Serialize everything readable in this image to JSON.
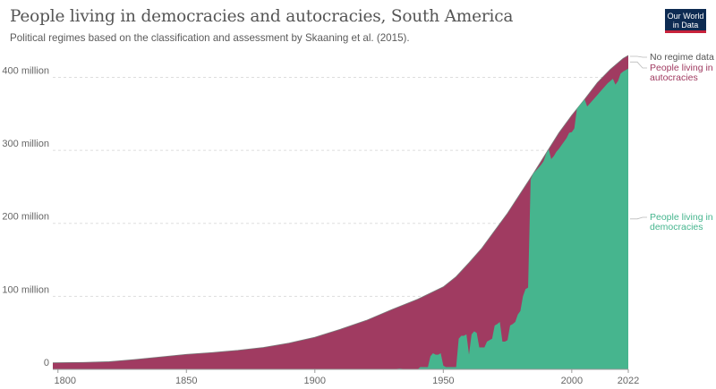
{
  "header": {
    "title": "People living in democracies and autocracies, South America",
    "subtitle": "Political regimes based on the classification and assessment by Skaaning et al. (2015).",
    "logo_line1": "Our World",
    "logo_line2": "in Data"
  },
  "colors": {
    "democracies": "#46b58e",
    "autocracies": "#a03b61",
    "no_regime": "#7a7a7a",
    "gridline": "#dddddd",
    "axis": "#999999"
  },
  "chart_data": {
    "type": "area",
    "stacked": true,
    "title": "People living in democracies and autocracies, South America",
    "subtitle": "Political regimes based on the classification and assessment by Skaaning et al. (2015).",
    "xlabel": "",
    "ylabel": "",
    "xlim": [
      1798,
      2022
    ],
    "ylim": [
      0,
      430
    ],
    "y_unit": "million",
    "x_ticks": [
      {
        "value": 1800,
        "label": "1800"
      },
      {
        "value": 1850,
        "label": "1850"
      },
      {
        "value": 1900,
        "label": "1900"
      },
      {
        "value": 1950,
        "label": "1950"
      },
      {
        "value": 2000,
        "label": "2000"
      },
      {
        "value": 2022,
        "label": "2022"
      }
    ],
    "y_ticks": [
      {
        "value": 0,
        "label": "0"
      },
      {
        "value": 100,
        "label": "100 million"
      },
      {
        "value": 200,
        "label": "200 million"
      },
      {
        "value": 300,
        "label": "300 million"
      },
      {
        "value": 400,
        "label": "400 million"
      }
    ],
    "grid": true,
    "legend_position": "right",
    "series": [
      {
        "name": "People living in democracies",
        "color": "#46b58e",
        "points": [
          [
            1798,
            0
          ],
          [
            1930,
            0
          ],
          [
            1933,
            1
          ],
          [
            1936,
            0
          ],
          [
            1940,
            0
          ],
          [
            1941,
            3
          ],
          [
            1944,
            3
          ],
          [
            1945,
            18
          ],
          [
            1946,
            22
          ],
          [
            1947,
            20
          ],
          [
            1948,
            20
          ],
          [
            1949,
            22
          ],
          [
            1950,
            5
          ],
          [
            1951,
            3
          ],
          [
            1954,
            3
          ],
          [
            1955,
            3
          ],
          [
            1956,
            42
          ],
          [
            1957,
            46
          ],
          [
            1958,
            46
          ],
          [
            1959,
            48
          ],
          [
            1960,
            20
          ],
          [
            1961,
            48
          ],
          [
            1962,
            52
          ],
          [
            1963,
            50
          ],
          [
            1964,
            30
          ],
          [
            1966,
            30
          ],
          [
            1967,
            38
          ],
          [
            1968,
            40
          ],
          [
            1969,
            42
          ],
          [
            1970,
            60
          ],
          [
            1971,
            62
          ],
          [
            1972,
            65
          ],
          [
            1973,
            38
          ],
          [
            1974,
            38
          ],
          [
            1975,
            40
          ],
          [
            1976,
            60
          ],
          [
            1977,
            62
          ],
          [
            1978,
            65
          ],
          [
            1979,
            75
          ],
          [
            1980,
            80
          ],
          [
            1981,
            100
          ],
          [
            1982,
            110
          ],
          [
            1983,
            112
          ],
          [
            1984,
            260
          ],
          [
            1985,
            268
          ],
          [
            1986,
            272
          ],
          [
            1987,
            276
          ],
          [
            1988,
            280
          ],
          [
            1989,
            285
          ],
          [
            1990,
            295
          ],
          [
            1991,
            305
          ],
          [
            1992,
            288
          ],
          [
            1993,
            292
          ],
          [
            1994,
            298
          ],
          [
            1995,
            302
          ],
          [
            1996,
            307
          ],
          [
            1997,
            312
          ],
          [
            1998,
            317
          ],
          [
            1999,
            324
          ],
          [
            2000,
            325
          ],
          [
            2001,
            330
          ],
          [
            2002,
            366
          ],
          [
            2003,
            370
          ],
          [
            2004,
            376
          ],
          [
            2005,
            382
          ],
          [
            2006,
            360
          ],
          [
            2007,
            364
          ],
          [
            2008,
            368
          ],
          [
            2009,
            372
          ],
          [
            2010,
            376
          ],
          [
            2011,
            380
          ],
          [
            2012,
            384
          ],
          [
            2013,
            388
          ],
          [
            2014,
            392
          ],
          [
            2015,
            395
          ],
          [
            2016,
            398
          ],
          [
            2017,
            390
          ],
          [
            2018,
            395
          ],
          [
            2019,
            405
          ],
          [
            2020,
            408
          ],
          [
            2021,
            410
          ],
          [
            2022,
            412
          ]
        ]
      },
      {
        "name": "People living in autocracies",
        "color": "#a03b61",
        "total_points": [
          [
            1798,
            9
          ],
          [
            1810,
            9.5
          ],
          [
            1820,
            10.5
          ],
          [
            1830,
            13.5
          ],
          [
            1840,
            17
          ],
          [
            1850,
            20.5
          ],
          [
            1860,
            23
          ],
          [
            1870,
            26
          ],
          [
            1880,
            30
          ],
          [
            1890,
            36
          ],
          [
            1900,
            44
          ],
          [
            1910,
            55
          ],
          [
            1920,
            67
          ],
          [
            1930,
            82
          ],
          [
            1940,
            96
          ],
          [
            1950,
            113
          ],
          [
            1955,
            127
          ],
          [
            1960,
            146
          ],
          [
            1965,
            166
          ],
          [
            1970,
            190
          ],
          [
            1975,
            214
          ],
          [
            1980,
            241
          ],
          [
            1985,
            268
          ],
          [
            1990,
            296
          ],
          [
            1995,
            324
          ],
          [
            2000,
            348
          ],
          [
            2005,
            370
          ],
          [
            2010,
            393
          ],
          [
            2015,
            411
          ],
          [
            2020,
            426
          ],
          [
            2022,
            430
          ]
        ]
      },
      {
        "name": "No regime data",
        "color": "#7a7a7a",
        "points": []
      }
    ]
  }
}
